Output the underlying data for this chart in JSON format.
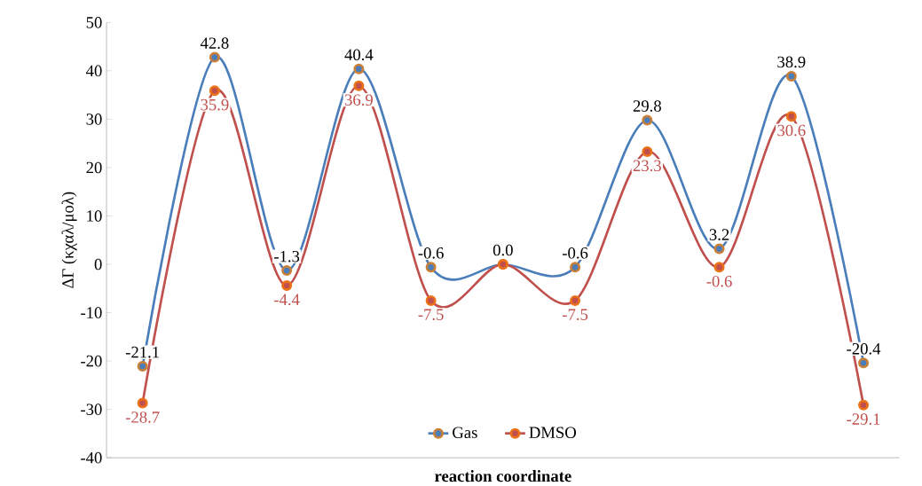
{
  "chart_data": {
    "type": "line",
    "xlabel": "reaction coordinate",
    "ylabel": "ΔΓ (κχαλ/μολ)",
    "categories": [
      null,
      null,
      null,
      null,
      null,
      null,
      null,
      null,
      null,
      null,
      null
    ],
    "series": [
      {
        "name": "Gas",
        "color": "#4a7ebb",
        "values": [
          -21.1,
          42.8,
          -1.3,
          40.4,
          -0.6,
          0.0,
          -0.6,
          29.8,
          3.2,
          38.9,
          -20.4
        ],
        "value_labels": [
          "-21.1",
          "42.8",
          "-1.3",
          "40.4",
          "-0.6",
          "0.0",
          "-0.6",
          "29.8",
          "3.2",
          "38.9",
          "-20.4"
        ]
      },
      {
        "name": "DMSO",
        "color": "#c0504d",
        "values": [
          -28.7,
          35.9,
          -4.4,
          36.9,
          -7.5,
          0.0,
          -7.5,
          23.3,
          -0.6,
          30.6,
          -29.1
        ],
        "value_labels": [
          "-28.7",
          "35.9",
          "-4.4",
          "36.9",
          "-7.5",
          null,
          "-7.5",
          "23.3",
          "-0.6",
          "30.6",
          "-29.1"
        ]
      }
    ],
    "ylim": [
      -40,
      50
    ],
    "yticks": [
      -40,
      -30,
      -20,
      -10,
      0,
      10,
      20,
      30,
      40,
      50
    ],
    "tick_labels": "y",
    "marker": "circle",
    "line_style": "solid",
    "legend": "bottom",
    "grid": false
  }
}
